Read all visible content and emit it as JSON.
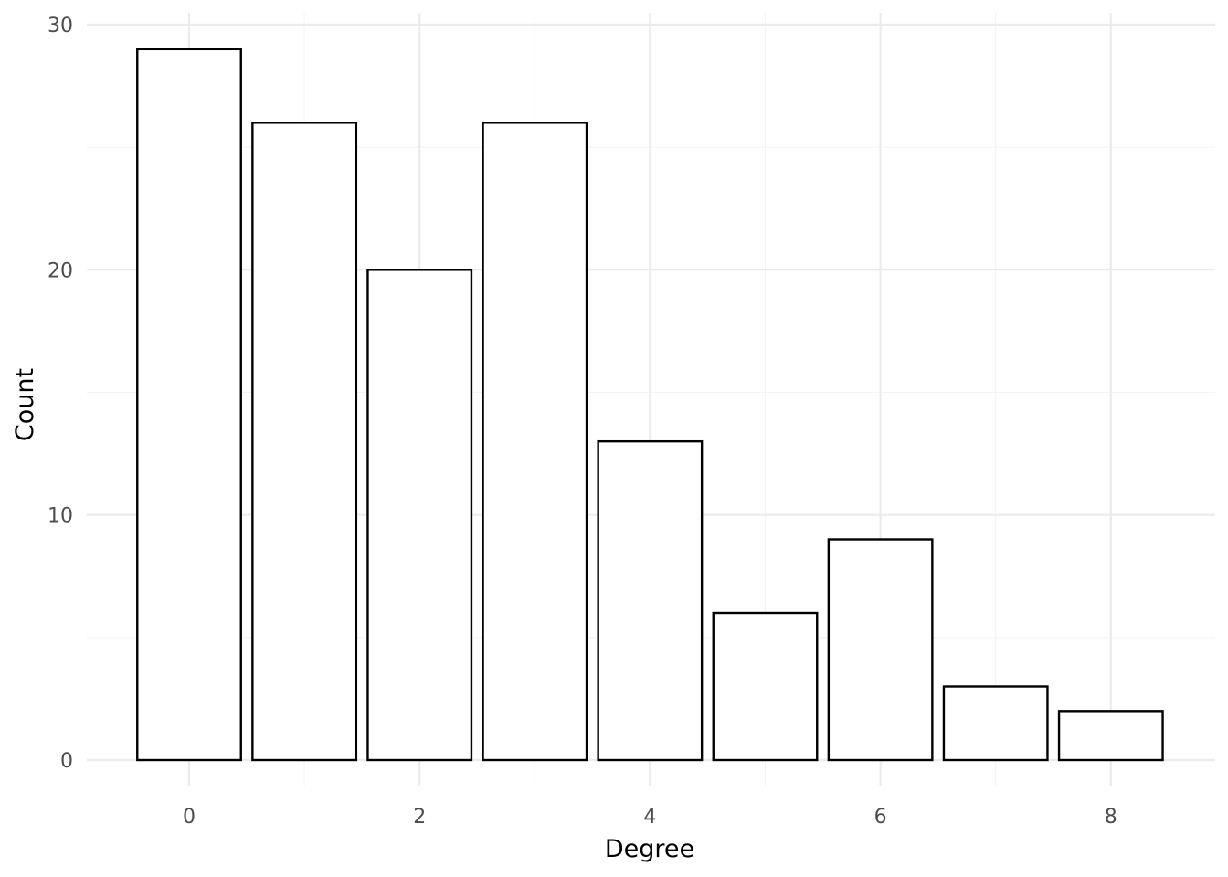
{
  "chart_data": {
    "type": "bar",
    "xlabel": "Degree",
    "ylabel": "Count",
    "x": [
      0,
      1,
      2,
      3,
      4,
      5,
      6,
      7,
      8
    ],
    "values": [
      29,
      26,
      20,
      26,
      13,
      6,
      9,
      3,
      2
    ],
    "xlim": [
      -0.75,
      8.45
    ],
    "ylim": [
      0,
      30
    ],
    "x_ticks": [
      "0",
      "2",
      "4",
      "6",
      "8"
    ],
    "y_ticks": [
      "0",
      "10",
      "20",
      "30"
    ],
    "grid": true,
    "bar_fill": "#ffffff",
    "bar_outline": "#000000"
  }
}
